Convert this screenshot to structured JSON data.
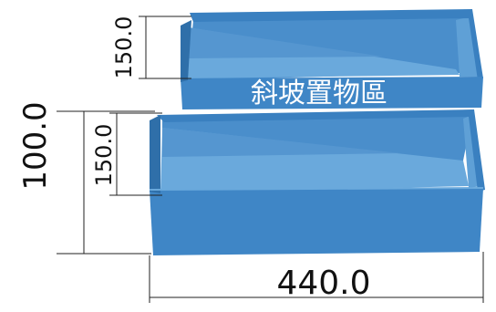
{
  "diagram": {
    "label": "斜坡置物區",
    "dimensions": {
      "top_height": "150.0",
      "lower_height": "150.0",
      "overall_height": "100.0",
      "width": "440.0"
    },
    "colors": {
      "box_face": "#3f86c6",
      "box_dark": "#2f6fa9",
      "box_light": "#6aa9dc",
      "box_floor": "#5596d0",
      "dimension_line": "#222222"
    }
  }
}
